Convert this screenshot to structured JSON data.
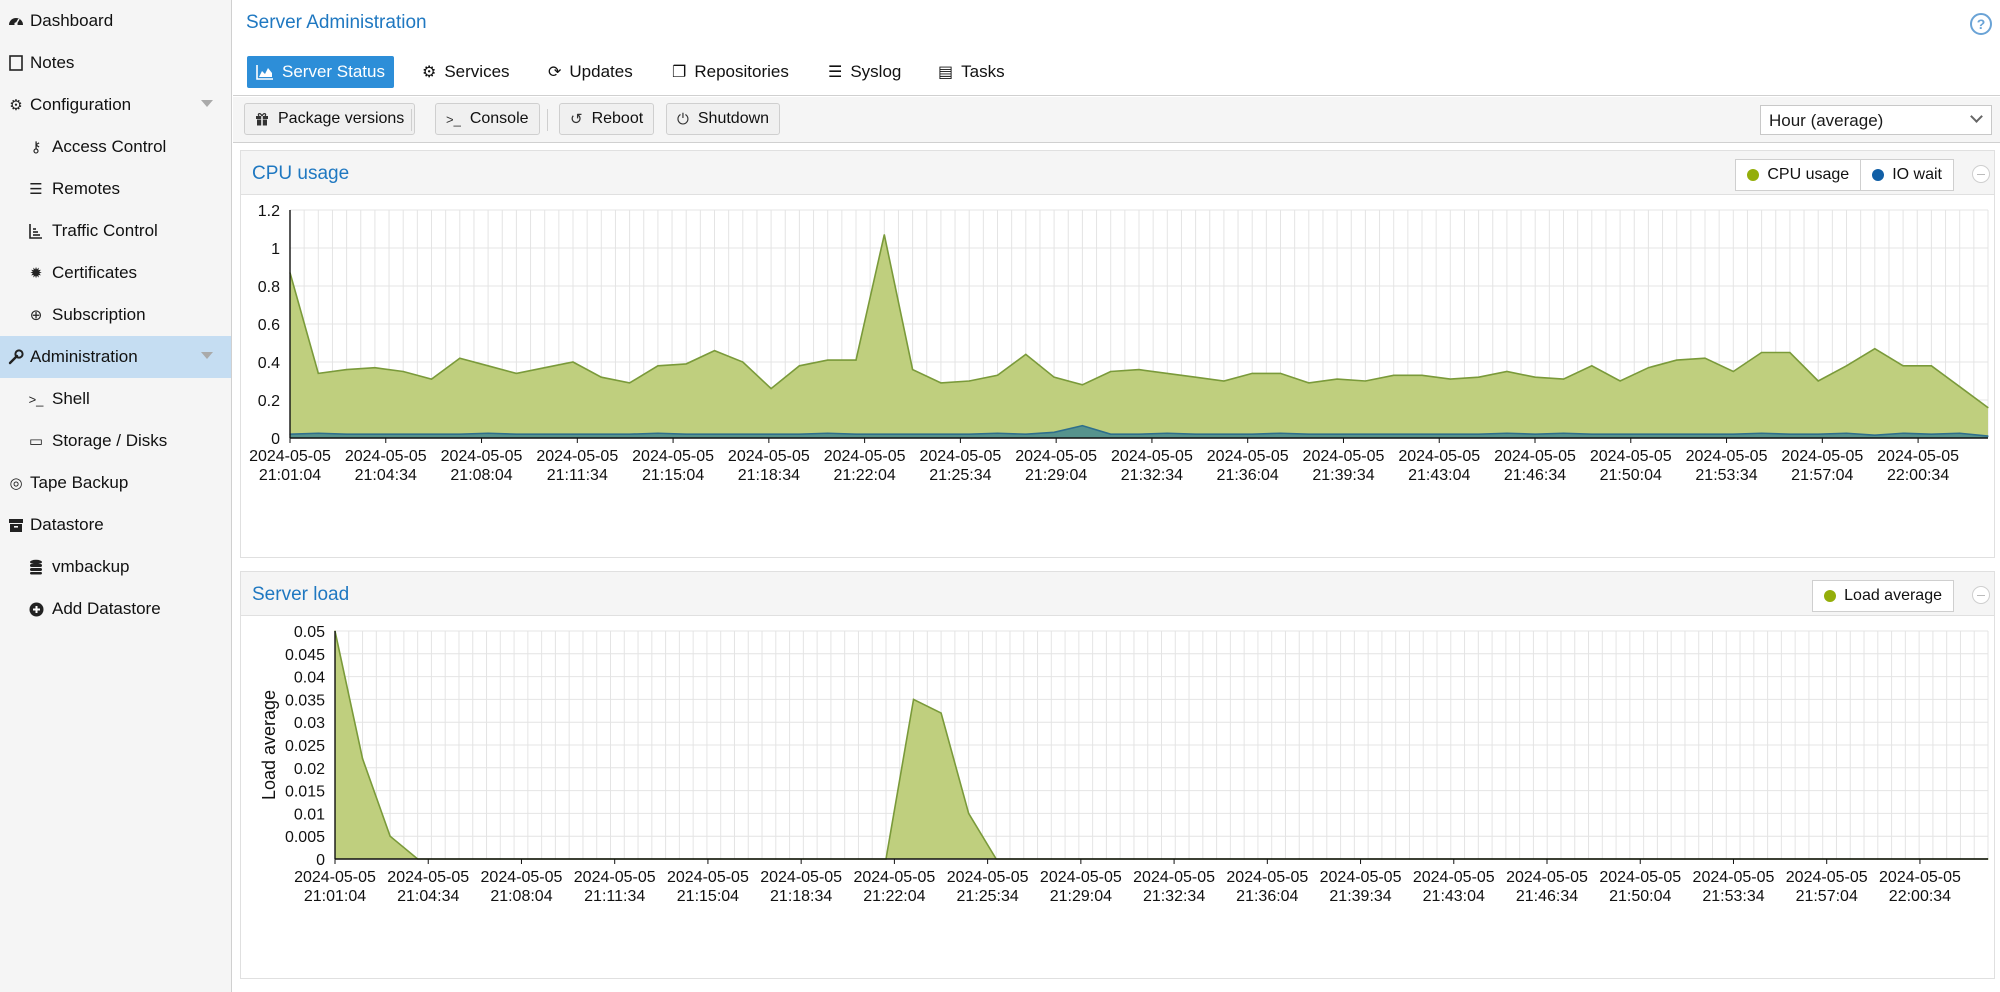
{
  "sidebar": {
    "items": [
      {
        "label": "Dashboard",
        "icon": "dashboard-icon",
        "glyph": "◍"
      },
      {
        "label": "Notes",
        "icon": "note-icon",
        "glyph": "▢"
      },
      {
        "label": "Configuration",
        "icon": "gears-icon",
        "glyph": "⚙"
      },
      {
        "label": "Access Control",
        "icon": "key-icon",
        "glyph": "⚷"
      },
      {
        "label": "Remotes",
        "icon": "server-icon",
        "glyph": "☰"
      },
      {
        "label": "Traffic Control",
        "icon": "signal-icon",
        "glyph": "⊾"
      },
      {
        "label": "Certificates",
        "icon": "certificate-icon",
        "glyph": "✹"
      },
      {
        "label": "Subscription",
        "icon": "support-icon",
        "glyph": "⊕"
      },
      {
        "label": "Administration",
        "icon": "wrench-icon",
        "glyph": "🔧"
      },
      {
        "label": "Shell",
        "icon": "terminal-icon",
        "glyph": ">_"
      },
      {
        "label": "Storage / Disks",
        "icon": "hdd-icon",
        "glyph": "▭"
      },
      {
        "label": "Tape Backup",
        "icon": "tape-icon",
        "glyph": "◎"
      },
      {
        "label": "Datastore",
        "icon": "archive-icon",
        "glyph": "▪"
      },
      {
        "label": "vmbackup",
        "icon": "database-icon",
        "glyph": "≡"
      },
      {
        "label": "Add Datastore",
        "icon": "plus-circle-icon",
        "glyph": "⊕"
      }
    ]
  },
  "header": {
    "title": "Server Administration",
    "help_icon": "question-circle-icon",
    "help_glyph": "?"
  },
  "tabs": [
    {
      "label": "Server Status",
      "icon": "area-chart-icon"
    },
    {
      "label": "Services",
      "icon": "gears-icon",
      "glyph": "⚙"
    },
    {
      "label": "Updates",
      "icon": "refresh-icon",
      "glyph": "⟳"
    },
    {
      "label": "Repositories",
      "icon": "files-icon",
      "glyph": "❐"
    },
    {
      "label": "Syslog",
      "icon": "list-icon",
      "glyph": "☰"
    },
    {
      "label": "Tasks",
      "icon": "list-alt-icon",
      "glyph": "▤"
    }
  ],
  "toolbar": {
    "package_versions": {
      "label": "Package versions",
      "icon": "gift-icon",
      "glyph": "🎁"
    },
    "console": {
      "label": "Console",
      "icon": "terminal-icon",
      "glyph": ">_"
    },
    "reboot": {
      "label": "Reboot",
      "icon": "undo-icon",
      "glyph": "↺"
    },
    "shutdown": {
      "label": "Shutdown",
      "icon": "power-off-icon",
      "glyph": "⏻"
    },
    "timeframe": "Hour (average)"
  },
  "colors": {
    "accent": "#2d8ed8",
    "title_blue": "#1f78c1",
    "cpu_fill": "#bfcf7e",
    "cpu_line": "#7a9a3a",
    "io_fill": "#4a8c8f",
    "io_line": "#2e6f8c",
    "legend_cpu": "#94ae0a",
    "legend_io": "#115fa6"
  },
  "chart_data": [
    {
      "title": "CPU usage",
      "type": "area",
      "ylim": [
        0,
        1.2
      ],
      "yticks": [
        "0",
        "0.2",
        "0.4",
        "0.6",
        "0.8",
        "1",
        "1.2"
      ],
      "ytick_values": [
        0,
        0.2,
        0.4,
        0.6,
        0.8,
        1,
        1.2
      ],
      "xtick_labels": [
        [
          "2024-05-05",
          "21:01:04"
        ],
        [
          "2024-05-05",
          "21:04:34"
        ],
        [
          "2024-05-05",
          "21:08:04"
        ],
        [
          "2024-05-05",
          "21:11:34"
        ],
        [
          "2024-05-05",
          "21:15:04"
        ],
        [
          "2024-05-05",
          "21:18:34"
        ],
        [
          "2024-05-05",
          "21:22:04"
        ],
        [
          "2024-05-05",
          "21:25:34"
        ],
        [
          "2024-05-05",
          "21:29:04"
        ],
        [
          "2024-05-05",
          "21:32:34"
        ],
        [
          "2024-05-05",
          "21:36:04"
        ],
        [
          "2024-05-05",
          "21:39:34"
        ],
        [
          "2024-05-05",
          "21:43:04"
        ],
        [
          "2024-05-05",
          "21:46:34"
        ],
        [
          "2024-05-05",
          "21:50:04"
        ],
        [
          "2024-05-05",
          "21:53:34"
        ],
        [
          "2024-05-05",
          "21:57:04"
        ],
        [
          "2024-05-05",
          "22:00:34"
        ]
      ],
      "legend": [
        "CPU usage",
        "IO wait"
      ],
      "series": [
        {
          "name": "CPU usage",
          "values": [
            0.87,
            0.34,
            0.36,
            0.37,
            0.35,
            0.31,
            0.42,
            0.38,
            0.34,
            0.37,
            0.4,
            0.32,
            0.29,
            0.38,
            0.39,
            0.46,
            0.4,
            0.26,
            0.38,
            0.41,
            0.41,
            1.07,
            0.36,
            0.29,
            0.3,
            0.33,
            0.44,
            0.32,
            0.28,
            0.35,
            0.36,
            0.34,
            0.32,
            0.3,
            0.34,
            0.34,
            0.29,
            0.31,
            0.3,
            0.33,
            0.33,
            0.31,
            0.32,
            0.35,
            0.32,
            0.31,
            0.38,
            0.3,
            0.37,
            0.41,
            0.42,
            0.35,
            0.45,
            0.45,
            0.3,
            0.38,
            0.47,
            0.38,
            0.38,
            0.27,
            0.16
          ]
        },
        {
          "name": "IO wait",
          "values": [
            0.02,
            0.025,
            0.02,
            0.02,
            0.02,
            0.02,
            0.02,
            0.025,
            0.02,
            0.02,
            0.02,
            0.02,
            0.02,
            0.025,
            0.02,
            0.02,
            0.02,
            0.02,
            0.02,
            0.025,
            0.02,
            0.02,
            0.02,
            0.02,
            0.02,
            0.025,
            0.02,
            0.03,
            0.065,
            0.02,
            0.02,
            0.025,
            0.02,
            0.02,
            0.02,
            0.025,
            0.02,
            0.02,
            0.02,
            0.02,
            0.02,
            0.02,
            0.02,
            0.025,
            0.02,
            0.025,
            0.02,
            0.02,
            0.02,
            0.02,
            0.02,
            0.02,
            0.025,
            0.02,
            0.02,
            0.025,
            0.015,
            0.025,
            0.02,
            0.025,
            0.01
          ]
        }
      ]
    },
    {
      "title": "Server load",
      "type": "area",
      "ylabel": "Load average",
      "ylim": [
        0,
        0.05
      ],
      "yticks": [
        "0",
        "0.005",
        "0.01",
        "0.015",
        "0.02",
        "0.025",
        "0.03",
        "0.035",
        "0.04",
        "0.045",
        "0.05"
      ],
      "ytick_values": [
        0,
        0.005,
        0.01,
        0.015,
        0.02,
        0.025,
        0.03,
        0.035,
        0.04,
        0.045,
        0.05
      ],
      "xtick_labels": [
        [
          "2024-05-05",
          "21:01:04"
        ],
        [
          "2024-05-05",
          "21:04:34"
        ],
        [
          "2024-05-05",
          "21:08:04"
        ],
        [
          "2024-05-05",
          "21:11:34"
        ],
        [
          "2024-05-05",
          "21:15:04"
        ],
        [
          "2024-05-05",
          "21:18:34"
        ],
        [
          "2024-05-05",
          "21:22:04"
        ],
        [
          "2024-05-05",
          "21:25:34"
        ],
        [
          "2024-05-05",
          "21:29:04"
        ],
        [
          "2024-05-05",
          "21:32:34"
        ],
        [
          "2024-05-05",
          "21:36:04"
        ],
        [
          "2024-05-05",
          "21:39:34"
        ],
        [
          "2024-05-05",
          "21:43:04"
        ],
        [
          "2024-05-05",
          "21:46:34"
        ],
        [
          "2024-05-05",
          "21:50:04"
        ],
        [
          "2024-05-05",
          "21:53:34"
        ],
        [
          "2024-05-05",
          "21:57:04"
        ],
        [
          "2024-05-05",
          "22:00:34"
        ]
      ],
      "legend": [
        "Load average"
      ],
      "series": [
        {
          "name": "Load average",
          "values": [
            0.05,
            0.022,
            0.005,
            0,
            0,
            0,
            0,
            0,
            0,
            0,
            0,
            0,
            0,
            0,
            0,
            0,
            0,
            0,
            0,
            0,
            0,
            0.035,
            0.032,
            0.01,
            0,
            0,
            0,
            0,
            0,
            0,
            0,
            0,
            0,
            0,
            0,
            0,
            0,
            0,
            0,
            0,
            0,
            0,
            0,
            0,
            0,
            0,
            0,
            0,
            0,
            0,
            0,
            0,
            0,
            0,
            0,
            0,
            0,
            0,
            0,
            0,
            0
          ]
        }
      ]
    }
  ]
}
